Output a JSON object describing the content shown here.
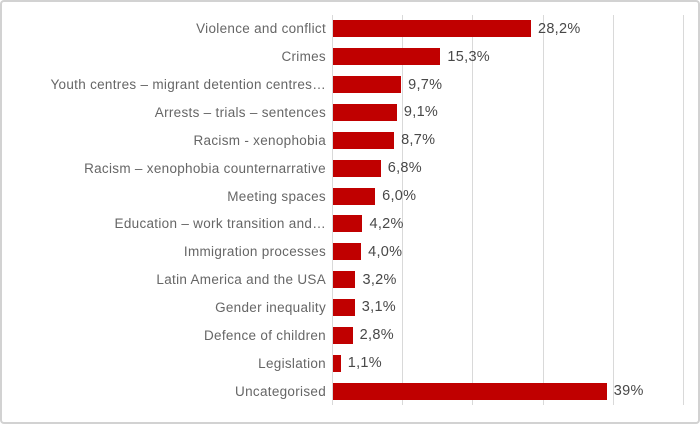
{
  "chart_data": {
    "type": "bar",
    "orientation": "horizontal",
    "title": "",
    "xlabel": "",
    "ylabel": "",
    "categories": [
      "Violence and conflict",
      "Crimes",
      "Youth centres – migrant detention centres…",
      "Arrests – trials – sentences",
      "Racism - xenophobia",
      "Racism – xenophobia counternarrative",
      "Meeting spaces",
      "Education – work transition and…",
      "Immigration processes",
      "Latin America and the USA",
      "Gender inequality",
      "Defence of children",
      "Legislation",
      "Uncategorised"
    ],
    "values": [
      28.2,
      15.3,
      9.7,
      9.1,
      8.7,
      6.8,
      6.0,
      4.2,
      4.0,
      3.2,
      3.1,
      2.8,
      1.1,
      39
    ],
    "value_labels": [
      "28,2%",
      "15,3%",
      "9,7%",
      "9,1%",
      "8,7%",
      "6,8%",
      "6,0%",
      "4,2%",
      "4,0%",
      "3,2%",
      "3,1%",
      "2,8%",
      "1,1%",
      "39%"
    ],
    "xlim": [
      0,
      50
    ],
    "gridline_interval": 10,
    "grid": true,
    "legend": false,
    "value_labels_position": "outside-end",
    "colors": {
      "bar": "#c00000",
      "gridline": "#d9d9d9",
      "axis_line": "#d9d9d9",
      "category_label": "#666666",
      "value_label": "#484848",
      "chart_border": "#d2d2d2",
      "background": "#ffffff"
    }
  }
}
